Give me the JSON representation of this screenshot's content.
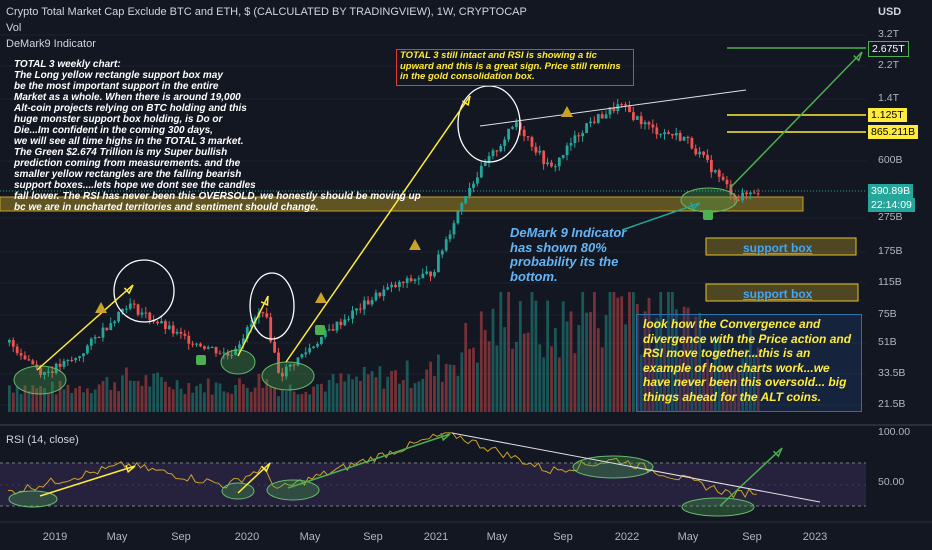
{
  "header": {
    "title": "Crypto Total Market Cap Exclude BTC and ETH, $ (CALCULATED BY TRADINGVIEW), 1W, CRYPTOCAP",
    "vol_label": "Vol",
    "indicator_label": "DeMark9 Indicator",
    "currency": "USD"
  },
  "price_axis": {
    "labels": [
      "3.2T",
      "2.2T",
      "1.4T",
      "600B",
      "275B",
      "175B",
      "115B",
      "75B",
      "51B",
      "33.5B",
      "21.5B"
    ],
    "tags": [
      {
        "text": "2.675T",
        "color": "#4caf50"
      },
      {
        "text": "1.125T",
        "color": "#ffeb3b"
      },
      {
        "text": "865.211B",
        "color": "#ffeb3b"
      },
      {
        "text": "390.89B",
        "color": "#26a69a"
      },
      {
        "text": "22:14:09",
        "color": "#26a69a"
      }
    ]
  },
  "rsi": {
    "title": "RSI (14, close)",
    "axis_labels": [
      "100.00",
      "50.00"
    ]
  },
  "x_axis": {
    "labels": [
      "2019",
      "May",
      "Sep",
      "2020",
      "May",
      "Sep",
      "2021",
      "May",
      "Sep",
      "2022",
      "May",
      "Sep",
      "2023"
    ]
  },
  "annotations": {
    "main_note": [
      "TOTAL 3 weekly chart:",
      "The Long yellow rectangle support box may",
      "be the most important support in the entire",
      "Market as a whole. When there is around 19,000",
      "Alt-coin projects relying on BTC holding and this",
      "huge monster support box holding, is Do or",
      "Die...Im confident in the coming 300 days,",
      "we will see all time highs in the TOTAL 3 market.",
      "The Green $2.674 Trillion is my Super bullish",
      "prediction coming from measurements. and the",
      "smaller yellow rectangles are the falling bearish",
      "support boxes....lets hope we dont see the candles",
      "fall lower. The RSI has never been this OVERSOLD, we honestly should be moving up",
      "bc we are in uncharted territories and sentiment should change."
    ],
    "red_box_note": "TOTAL 3 still intact and RSI is showing a tic upward and this is a great sign. Price still remins in the gold consolidation box.",
    "demark_note": [
      "DeMark 9 Indicator",
      "has shown 80%",
      "probability its the",
      "bottom."
    ],
    "convergence_note": "look how the Convergence and divergence with the Price action and RSI move together...this is an example of how charts work...we have never been this oversold... big things ahead for the ALT coins.",
    "support_box_1": "support box",
    "support_box_2": "support box"
  },
  "colors": {
    "background": "#131722",
    "up_candle": "#26a69a",
    "down_candle": "#ef5350",
    "annotation_yellow": "#ffeb3b",
    "annotation_green": "#4caf50",
    "rsi_line": "#c9a227"
  },
  "chart_data": {
    "type": "candlestick",
    "timeframe": "1W",
    "y_scale": "log",
    "price_ticks": [
      "3.2T",
      "2.2T",
      "1.4T",
      "600B",
      "275B",
      "175B",
      "115B",
      "75B",
      "51B",
      "33.5B",
      "21.5B"
    ],
    "x_ticks": [
      "2019",
      "May",
      "Sep",
      "2020",
      "May",
      "Sep",
      "2021",
      "May",
      "Sep",
      "2022",
      "May",
      "Sep",
      "2023"
    ],
    "price_path_approx": [
      {
        "x": "2018-11",
        "close": 50
      },
      {
        "x": "2019-01",
        "close": 33
      },
      {
        "x": "2019-03",
        "close": 40
      },
      {
        "x": "2019-06",
        "close": 85
      },
      {
        "x": "2019-09",
        "close": 55
      },
      {
        "x": "2019-12",
        "close": 42
      },
      {
        "x": "2020-02",
        "close": 80
      },
      {
        "x": "2020-03",
        "close": 32
      },
      {
        "x": "2020-06",
        "close": 60
      },
      {
        "x": "2020-09",
        "close": 100
      },
      {
        "x": "2020-12",
        "close": 130
      },
      {
        "x": "2021-02",
        "close": 400
      },
      {
        "x": "2021-05",
        "close": 1000
      },
      {
        "x": "2021-07",
        "close": 520
      },
      {
        "x": "2021-09",
        "close": 950
      },
      {
        "x": "2021-11",
        "close": 1250
      },
      {
        "x": "2022-01",
        "close": 900
      },
      {
        "x": "2022-03",
        "close": 800
      },
      {
        "x": "2022-05",
        "close": 470
      },
      {
        "x": "2022-06",
        "close": 350
      },
      {
        "x": "2022-07",
        "close": 390.89
      }
    ],
    "last_price": "390.89B",
    "levels": [
      {
        "value": "2.675T",
        "color": "#4caf50"
      },
      {
        "value": "1.125T",
        "color": "#ffeb3b"
      },
      {
        "value": "865.211B",
        "color": "#ffeb3b"
      }
    ],
    "rsi": {
      "period": 14,
      "axis": [
        "100.00",
        "50.00"
      ],
      "path_approx": [
        {
          "x": "2018-11",
          "value": 30
        },
        {
          "x": "2019-06",
          "value": 62
        },
        {
          "x": "2019-12",
          "value": 38
        },
        {
          "x": "2020-02",
          "value": 58
        },
        {
          "x": "2020-03",
          "value": 33
        },
        {
          "x": "2021-01",
          "value": 99
        },
        {
          "x": "2021-07",
          "value": 55
        },
        {
          "x": "2021-11",
          "value": 68
        },
        {
          "x": "2022-06",
          "value": 27
        },
        {
          "x": "2022-07",
          "value": 31
        }
      ]
    }
  }
}
